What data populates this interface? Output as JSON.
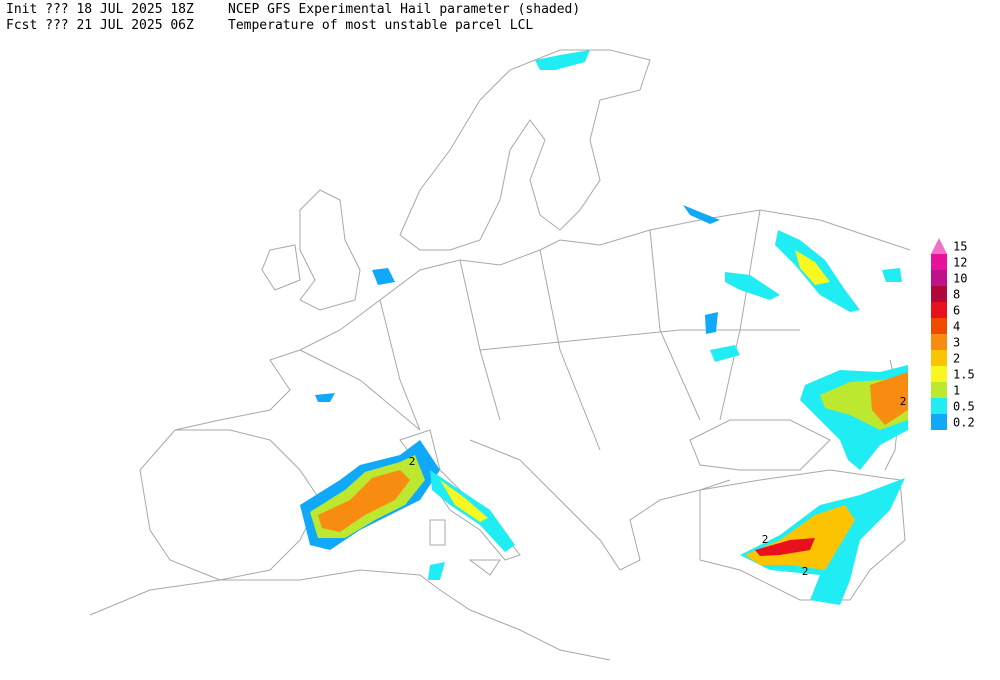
{
  "header": {
    "init_label": "Init  ??? 18 JUL 2025 18Z",
    "title": "NCEP GFS Experimental Hail parameter (shaded)",
    "fcst_label": "Fcst ??? 21 JUL 2025 06Z",
    "subtitle": "Temperature of most unstable parcel LCL"
  },
  "legend": {
    "items": [
      {
        "label": "15",
        "color": "#f070c8"
      },
      {
        "label": "12",
        "color": "#e8109c"
      },
      {
        "label": "10",
        "color": "#c0108c"
      },
      {
        "label": "8",
        "color": "#b00838"
      },
      {
        "label": "6",
        "color": "#e8101c"
      },
      {
        "label": "4",
        "color": "#f04a00"
      },
      {
        "label": "3",
        "color": "#f88c10"
      },
      {
        "label": "2",
        "color": "#fcc400"
      },
      {
        "label": "1.5",
        "color": "#f8f820"
      },
      {
        "label": "1",
        "color": "#bce830"
      },
      {
        "label": "0.5",
        "color": "#20ecf4"
      },
      {
        "label": "0.2",
        "color": "#10a8f8"
      }
    ]
  },
  "map": {
    "contour_labels": [
      "2",
      "2",
      "2",
      "2"
    ]
  }
}
